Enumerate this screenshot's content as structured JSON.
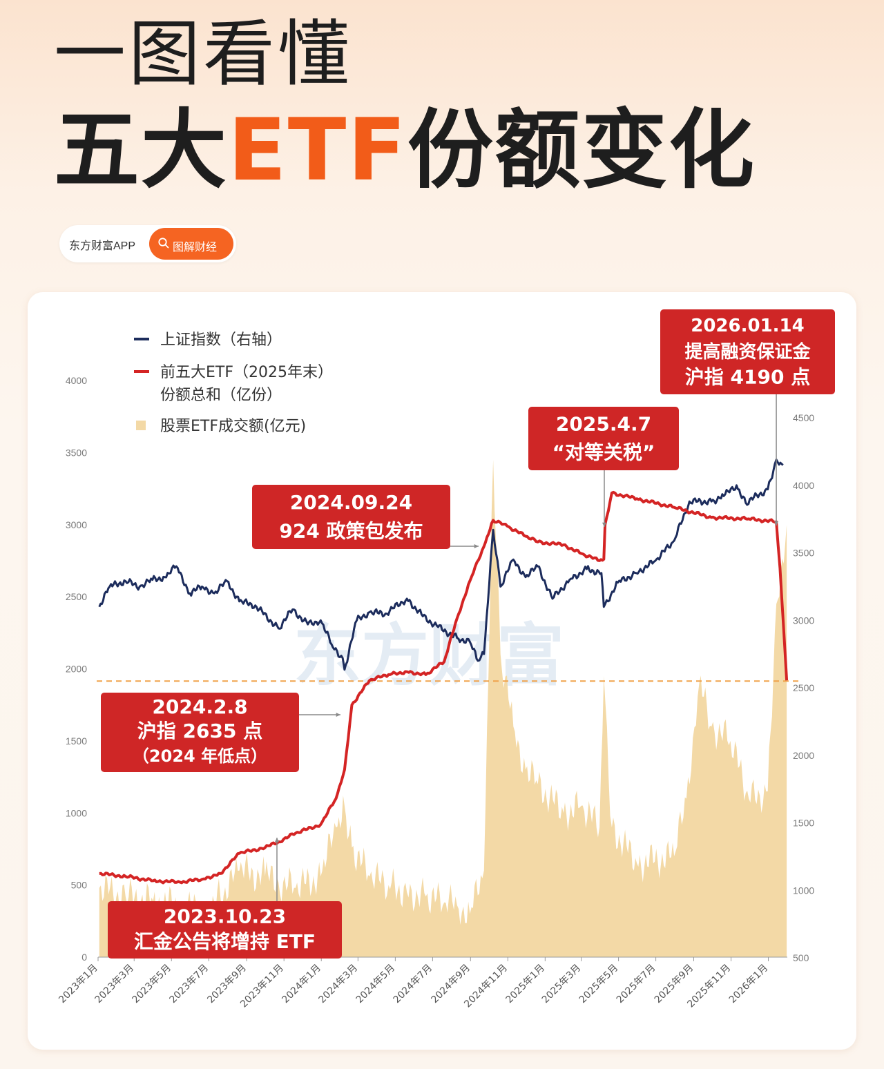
{
  "header": {
    "title_line1": "一图看懂",
    "title_line2_pre": "五大",
    "title_line2_accent": "ETF",
    "title_line2_post": "份额变化"
  },
  "brand": {
    "app_name": "东方财富APP",
    "tag_label": "图解财经",
    "search_icon": "search-icon"
  },
  "colors": {
    "accent": "#f25c19",
    "index_line": "#1c2c5c",
    "etf_line": "#d42424",
    "volume_area": "#f3d9a6",
    "callout_bg": "#cf2626",
    "dashed_line": "#f0a24a"
  },
  "watermark": "东方财富",
  "legend": {
    "items": [
      {
        "label": "上证指数（右轴）",
        "type": "line",
        "color": "#1c2c5c"
      },
      {
        "label": "前五大ETF（2025年末）",
        "label2": "份额总和（亿份）",
        "type": "line",
        "color": "#d42424"
      },
      {
        "label": "股票ETF成交额(亿元)",
        "type": "box",
        "color": "#f3d9a6"
      }
    ]
  },
  "callouts": [
    {
      "id": "c2026",
      "lines": [
        "2026.01.14",
        "提高融资保证金",
        "沪指 4190 点"
      ]
    },
    {
      "id": "c2025",
      "lines": [
        "2025.4.7",
        "“对等关税”"
      ]
    },
    {
      "id": "c0924",
      "lines": [
        "2024.09.24",
        "924 政策包发布"
      ]
    },
    {
      "id": "c0208",
      "lines": [
        "2024.2.8",
        "沪指 2635 点",
        "（2024 年低点）"
      ]
    },
    {
      "id": "c1023",
      "lines": [
        "2023.10.23",
        "汇金公告将增持 ETF"
      ]
    }
  ],
  "chart_data": {
    "type": "line",
    "title": "",
    "x_tick_labels": [
      "2023年1月",
      "2023年3月",
      "2023年5月",
      "2023年7月",
      "2023年9月",
      "2023年11月",
      "2024年1月",
      "2024年3月",
      "2024年5月",
      "2024年7月",
      "2024年9月",
      "2024年11月",
      "2025年1月",
      "2025年3月",
      "2025年5月",
      "2025年7月",
      "2025年9月",
      "2025年11月",
      "2026年1月"
    ],
    "left_axis": {
      "ylim": [
        0,
        4000
      ],
      "ticks": [
        0,
        500,
        1000,
        1500,
        2000,
        2500,
        3000,
        3500,
        4000
      ]
    },
    "right_axis": {
      "ylim": [
        500,
        4700
      ],
      "ticks": [
        500,
        1000,
        1500,
        2000,
        2500,
        3000,
        3500,
        4000,
        4500
      ]
    },
    "reference_line": {
      "axis": "right",
      "value": 2550,
      "style": "dashed"
    },
    "series": [
      {
        "name": "上证指数（右轴）",
        "axis": "right",
        "type": "line",
        "points": [
          [
            "2023-01-03",
            3100
          ],
          [
            "2023-01-20",
            3250
          ],
          [
            "2023-02-15",
            3290
          ],
          [
            "2023-03-10",
            3250
          ],
          [
            "2023-03-31",
            3300
          ],
          [
            "2023-04-20",
            3320
          ],
          [
            "2023-05-09",
            3400
          ],
          [
            "2023-05-31",
            3200
          ],
          [
            "2023-06-20",
            3250
          ],
          [
            "2023-07-10",
            3200
          ],
          [
            "2023-07-31",
            3290
          ],
          [
            "2023-08-20",
            3140
          ],
          [
            "2023-09-15",
            3110
          ],
          [
            "2023-10-23",
            2940
          ],
          [
            "2023-11-15",
            3080
          ],
          [
            "2023-12-10",
            2970
          ],
          [
            "2023-12-31",
            3000
          ],
          [
            "2024-01-20",
            2800
          ],
          [
            "2024-02-05",
            2720
          ],
          [
            "2024-02-08",
            2635
          ],
          [
            "2024-02-28",
            3000
          ],
          [
            "2024-03-20",
            3060
          ],
          [
            "2024-04-15",
            3050
          ],
          [
            "2024-05-20",
            3160
          ],
          [
            "2024-06-15",
            3030
          ],
          [
            "2024-07-10",
            2950
          ],
          [
            "2024-08-10",
            2870
          ],
          [
            "2024-08-31",
            2840
          ],
          [
            "2024-09-13",
            2700
          ],
          [
            "2024-09-23",
            2750
          ],
          [
            "2024-10-08",
            3670
          ],
          [
            "2024-10-20",
            3250
          ],
          [
            "2024-11-10",
            3450
          ],
          [
            "2024-11-30",
            3320
          ],
          [
            "2024-12-20",
            3400
          ],
          [
            "2025-01-13",
            3160
          ],
          [
            "2025-02-10",
            3300
          ],
          [
            "2025-03-10",
            3380
          ],
          [
            "2025-04-03",
            3350
          ],
          [
            "2025-04-07",
            3100
          ],
          [
            "2025-04-30",
            3280
          ],
          [
            "2025-05-30",
            3350
          ],
          [
            "2025-06-30",
            3440
          ],
          [
            "2025-07-31",
            3590
          ],
          [
            "2025-08-25",
            3880
          ],
          [
            "2025-09-30",
            3880
          ],
          [
            "2025-10-20",
            3920
          ],
          [
            "2025-11-10",
            4000
          ],
          [
            "2025-11-25",
            3870
          ],
          [
            "2025-12-31",
            3970
          ],
          [
            "2026-01-14",
            4190
          ],
          [
            "2026-01-25",
            4150
          ]
        ]
      },
      {
        "name": "前五大ETF（2025年末）份额总和（亿份）",
        "axis": "left",
        "type": "line",
        "points": [
          [
            "2023-01-03",
            580
          ],
          [
            "2023-02-15",
            560
          ],
          [
            "2023-04-01",
            530
          ],
          [
            "2023-05-15",
            520
          ],
          [
            "2023-06-20",
            540
          ],
          [
            "2023-07-20",
            580
          ],
          [
            "2023-08-20",
            720
          ],
          [
            "2023-10-01",
            760
          ],
          [
            "2023-10-23",
            800
          ],
          [
            "2023-11-20",
            860
          ],
          [
            "2023-12-31",
            920
          ],
          [
            "2024-01-25",
            1100
          ],
          [
            "2024-02-08",
            1300
          ],
          [
            "2024-02-20",
            1750
          ],
          [
            "2024-03-20",
            1920
          ],
          [
            "2024-04-20",
            1960
          ],
          [
            "2024-05-20",
            1980
          ],
          [
            "2024-06-20",
            1960
          ],
          [
            "2024-07-20",
            2050
          ],
          [
            "2024-08-10",
            2350
          ],
          [
            "2024-08-31",
            2610
          ],
          [
            "2024-09-23",
            2850
          ],
          [
            "2024-10-08",
            3030
          ],
          [
            "2024-10-31",
            2990
          ],
          [
            "2024-11-30",
            2920
          ],
          [
            "2024-12-20",
            2880
          ],
          [
            "2025-01-31",
            2860
          ],
          [
            "2025-03-01",
            2800
          ],
          [
            "2025-03-31",
            2750
          ],
          [
            "2025-04-07",
            2760
          ],
          [
            "2025-04-09",
            3000
          ],
          [
            "2025-04-20",
            3220
          ],
          [
            "2025-05-31",
            3180
          ],
          [
            "2025-07-31",
            3120
          ],
          [
            "2025-09-30",
            3050
          ],
          [
            "2025-11-30",
            3040
          ],
          [
            "2026-01-14",
            3020
          ],
          [
            "2026-01-20",
            2700
          ],
          [
            "2026-01-31",
            1920
          ]
        ]
      },
      {
        "name": "股票ETF成交额(亿元)",
        "axis": "left",
        "type": "area",
        "points": [
          [
            "2023-01-03",
            480
          ],
          [
            "2023-02-15",
            420
          ],
          [
            "2023-04-01",
            390
          ],
          [
            "2023-05-15",
            360
          ],
          [
            "2023-06-20",
            320
          ],
          [
            "2023-07-20",
            420
          ],
          [
            "2023-08-20",
            600
          ],
          [
            "2023-10-01",
            560
          ],
          [
            "2023-10-23",
            520
          ],
          [
            "2023-11-20",
            480
          ],
          [
            "2023-12-31",
            560
          ],
          [
            "2024-01-25",
            900
          ],
          [
            "2024-02-08",
            1050
          ],
          [
            "2024-02-20",
            760
          ],
          [
            "2024-03-20",
            560
          ],
          [
            "2024-04-20",
            500
          ],
          [
            "2024-05-20",
            450
          ],
          [
            "2024-06-20",
            420
          ],
          [
            "2024-07-20",
            380
          ],
          [
            "2024-08-10",
            360
          ],
          [
            "2024-08-31",
            300
          ],
          [
            "2024-09-23",
            600
          ],
          [
            "2024-10-08",
            3450
          ],
          [
            "2024-10-20",
            2100
          ],
          [
            "2024-11-10",
            1600
          ],
          [
            "2024-11-30",
            1300
          ],
          [
            "2024-12-20",
            1200
          ],
          [
            "2025-01-31",
            1000
          ],
          [
            "2025-03-01",
            1050
          ],
          [
            "2025-03-31",
            900
          ],
          [
            "2025-04-07",
            1950
          ],
          [
            "2025-04-20",
            900
          ],
          [
            "2025-05-31",
            650
          ],
          [
            "2025-07-31",
            700
          ],
          [
            "2025-08-20",
            1100
          ],
          [
            "2025-09-10",
            1900
          ],
          [
            "2025-09-30",
            1600
          ],
          [
            "2025-10-31",
            1500
          ],
          [
            "2025-11-30",
            1100
          ],
          [
            "2025-12-31",
            1150
          ],
          [
            "2026-01-14",
            2450
          ],
          [
            "2026-01-31",
            3000
          ]
        ]
      }
    ]
  }
}
